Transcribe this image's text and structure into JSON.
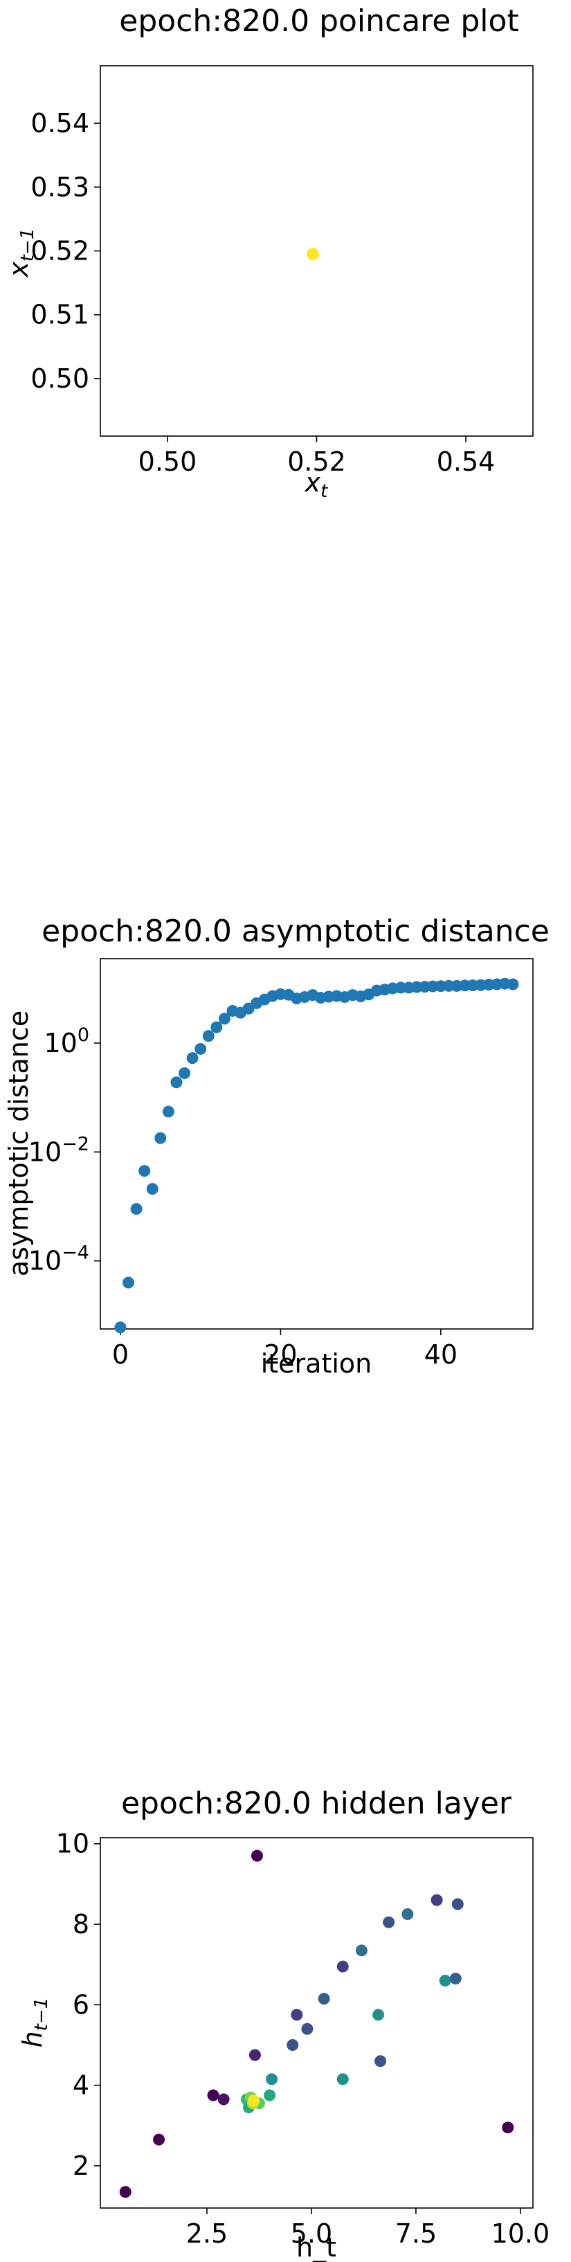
{
  "chart_data": [
    {
      "type": "scatter",
      "title": "epoch:820.0 poincare plot",
      "xlabel_base": "x",
      "xlabel_sub": "t",
      "ylabel_base": "x",
      "ylabel_sub": "t−1",
      "xlim": [
        0.491,
        0.549
      ],
      "ylim": [
        0.491,
        0.549
      ],
      "xticks": [
        0.5,
        0.52,
        0.54
      ],
      "xtick_labels": [
        "0.50",
        "0.52",
        "0.54"
      ],
      "yticks": [
        0.5,
        0.51,
        0.52,
        0.53,
        0.54
      ],
      "ytick_labels": [
        "0.50",
        "0.51",
        "0.52",
        "0.53",
        "0.54"
      ],
      "point_color": "#fde725",
      "points": [
        {
          "x": 0.5195,
          "y": 0.5195
        }
      ]
    },
    {
      "type": "scatter",
      "title": "epoch:820.0 asymptotic distance",
      "xlabel": "iteration",
      "ylabel": "asymptotic distance",
      "yscale": "log",
      "xlim": [
        -2.5,
        51.5
      ],
      "ylim_log10": [
        -5.25,
        1.55
      ],
      "xticks": [
        0,
        20,
        40
      ],
      "xtick_labels": [
        "0",
        "20",
        "40"
      ],
      "yticks_log10": [
        -4,
        -2,
        0
      ],
      "ytick_mantissa": [
        "10",
        "10",
        "10"
      ],
      "ytick_exponent": [
        "−4",
        "−2",
        "0"
      ],
      "point_color": "#1f77b4",
      "x": [
        0,
        1,
        2,
        3,
        4,
        5,
        6,
        7,
        8,
        9,
        10,
        11,
        12,
        13,
        14,
        15,
        16,
        17,
        18,
        19,
        20,
        21,
        22,
        23,
        24,
        25,
        26,
        27,
        28,
        29,
        30,
        31,
        32,
        33,
        34,
        35,
        36,
        37,
        38,
        39,
        40,
        41,
        42,
        43,
        44,
        45,
        46,
        47,
        48,
        49
      ],
      "y": [
        6e-06,
        4e-05,
        0.0009,
        0.0045,
        0.0021,
        0.018,
        0.055,
        0.19,
        0.28,
        0.53,
        0.78,
        1.35,
        1.95,
        2.8,
        3.9,
        3.6,
        4.3,
        5.4,
        6.3,
        7.3,
        7.9,
        7.7,
        6.6,
        7.0,
        7.6,
        6.8,
        7.1,
        7.3,
        7.0,
        7.6,
        7.2,
        7.8,
        9.2,
        9.6,
        10.1,
        10.4,
        10.4,
        10.7,
        10.8,
        11.0,
        11.1,
        11.2,
        11.2,
        11.4,
        11.5,
        11.6,
        11.8,
        12.0,
        12.3,
        12.0
      ]
    },
    {
      "type": "scatter",
      "title": "epoch:820.0 hidden layer",
      "xlabel": "h_t",
      "ylabel_base": "h",
      "ylabel_sub": "t−1",
      "xlim": [
        -0.05,
        10.3
      ],
      "ylim": [
        0.95,
        10.15
      ],
      "xticks": [
        2.5,
        5.0,
        7.5,
        10.0
      ],
      "xtick_labels": [
        "2.5",
        "5.0",
        "7.5",
        "10.0"
      ],
      "yticks": [
        2,
        4,
        6,
        8,
        10
      ],
      "ytick_labels": [
        "2",
        "4",
        "6",
        "8",
        "10"
      ],
      "points": [
        {
          "x": 0.55,
          "y": 1.35,
          "c": "#440154"
        },
        {
          "x": 1.35,
          "y": 2.65,
          "c": "#440154"
        },
        {
          "x": 2.65,
          "y": 3.75,
          "c": "#440154"
        },
        {
          "x": 2.9,
          "y": 3.65,
          "c": "#471365"
        },
        {
          "x": 3.7,
          "y": 9.7,
          "c": "#440154"
        },
        {
          "x": 3.65,
          "y": 4.75,
          "c": "#482475"
        },
        {
          "x": 4.55,
          "y": 5.0,
          "c": "#3b528b"
        },
        {
          "x": 4.65,
          "y": 5.75,
          "c": "#433e85"
        },
        {
          "x": 4.9,
          "y": 5.4,
          "c": "#3b528b"
        },
        {
          "x": 5.3,
          "y": 6.15,
          "c": "#33638d"
        },
        {
          "x": 5.75,
          "y": 6.95,
          "c": "#433e85"
        },
        {
          "x": 6.2,
          "y": 7.35,
          "c": "#2c728e"
        },
        {
          "x": 6.85,
          "y": 8.05,
          "c": "#3b528b"
        },
        {
          "x": 7.3,
          "y": 8.25,
          "c": "#2c728e"
        },
        {
          "x": 8.0,
          "y": 8.6,
          "c": "#433e85"
        },
        {
          "x": 8.5,
          "y": 8.5,
          "c": "#3b528b"
        },
        {
          "x": 8.2,
          "y": 6.6,
          "c": "#21918c"
        },
        {
          "x": 8.45,
          "y": 6.65,
          "c": "#33638d"
        },
        {
          "x": 6.6,
          "y": 5.75,
          "c": "#21918c"
        },
        {
          "x": 6.65,
          "y": 4.6,
          "c": "#3b528b"
        },
        {
          "x": 5.75,
          "y": 4.15,
          "c": "#21918c"
        },
        {
          "x": 4.05,
          "y": 4.15,
          "c": "#21918c"
        },
        {
          "x": 4.0,
          "y": 3.75,
          "c": "#22a884"
        },
        {
          "x": 9.7,
          "y": 2.95,
          "c": "#440154"
        },
        {
          "x": 3.45,
          "y": 3.65,
          "c": "#35b779"
        },
        {
          "x": 3.5,
          "y": 3.45,
          "c": "#22a884"
        },
        {
          "x": 3.75,
          "y": 3.55,
          "c": "#5ec962"
        },
        {
          "x": 3.55,
          "y": 3.7,
          "c": "#7ad151"
        },
        {
          "x": 3.6,
          "y": 3.55,
          "c": "#bddf26"
        },
        {
          "x": 3.62,
          "y": 3.62,
          "c": "#fde725"
        }
      ]
    }
  ]
}
